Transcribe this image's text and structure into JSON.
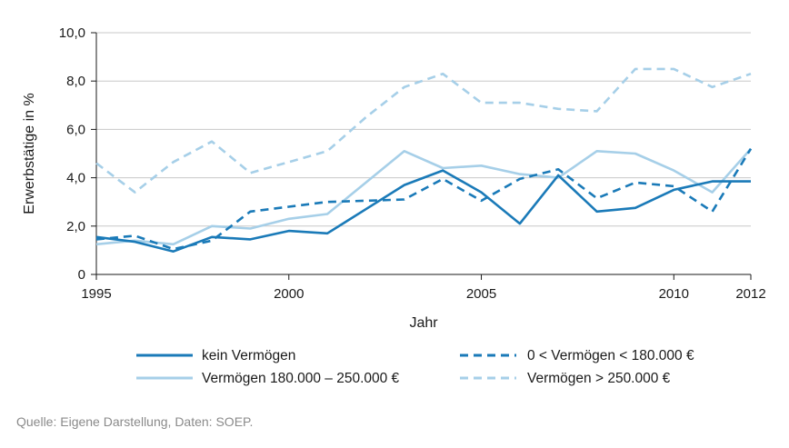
{
  "chart_data": {
    "type": "line",
    "xlabel": "Jahr",
    "ylabel": "Erwerbstätige in %",
    "xlim": [
      1995,
      2012
    ],
    "ylim": [
      0,
      10
    ],
    "x_ticks": [
      1995,
      2000,
      2005,
      2010,
      2012
    ],
    "x_tick_labels": [
      "1995",
      "2000",
      "2005",
      "2010",
      "2012"
    ],
    "y_ticks": [
      0,
      2,
      4,
      6,
      8,
      10
    ],
    "y_tick_labels": [
      "0",
      "2,0",
      "4,0",
      "6,0",
      "8,0",
      "10,0"
    ],
    "grid": "horizontal",
    "legend_position": "bottom",
    "x": [
      1995,
      1996,
      1997,
      1998,
      1999,
      2000,
      2001,
      2002,
      2003,
      2004,
      2005,
      2006,
      2007,
      2008,
      2009,
      2010,
      2011,
      2012
    ],
    "series": [
      {
        "name": "kein Vermögen",
        "color": "#1a7ab8",
        "style": "solid",
        "values": [
          1.55,
          1.35,
          0.95,
          1.55,
          1.45,
          1.8,
          1.7,
          2.7,
          3.7,
          4.3,
          3.4,
          2.1,
          4.1,
          2.6,
          2.75,
          3.5,
          3.85,
          3.85
        ]
      },
      {
        "name": "0 < Vermögen < 180.000 €",
        "color": "#1a7ab8",
        "style": "dashed",
        "values": [
          1.45,
          1.6,
          1.05,
          1.4,
          2.6,
          2.8,
          3.0,
          3.05,
          3.1,
          3.95,
          3.05,
          3.95,
          4.35,
          3.15,
          3.8,
          3.65,
          2.6,
          5.2
        ]
      },
      {
        "name": "Vermögen 180.000 – 250.000 €",
        "color": "#a6cfe8",
        "style": "solid",
        "values": [
          1.25,
          1.4,
          1.25,
          2.0,
          1.9,
          2.3,
          2.5,
          3.8,
          5.1,
          4.4,
          4.5,
          4.15,
          4.0,
          5.1,
          5.0,
          4.3,
          3.4,
          5.2
        ]
      },
      {
        "name": "Vermögen > 250.000 €",
        "color": "#a6cfe8",
        "style": "dashed",
        "values": [
          4.6,
          3.4,
          4.65,
          5.5,
          4.2,
          4.65,
          5.1,
          6.5,
          7.75,
          8.3,
          7.1,
          7.1,
          6.85,
          6.75,
          8.5,
          8.5,
          7.75,
          8.3
        ]
      }
    ]
  },
  "source": "Quelle: Eigene Darstellung, Daten: SOEP."
}
